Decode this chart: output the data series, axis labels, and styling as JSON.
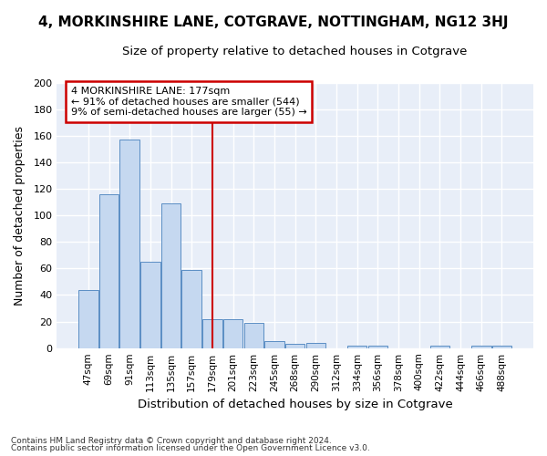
{
  "title": "4, MORKINSHIRE LANE, COTGRAVE, NOTTINGHAM, NG12 3HJ",
  "subtitle": "Size of property relative to detached houses in Cotgrave",
  "xlabel": "Distribution of detached houses by size in Cotgrave",
  "ylabel": "Number of detached properties",
  "categories": [
    "47sqm",
    "69sqm",
    "91sqm",
    "113sqm",
    "135sqm",
    "157sqm",
    "179sqm",
    "201sqm",
    "223sqm",
    "245sqm",
    "268sqm",
    "290sqm",
    "312sqm",
    "334sqm",
    "356sqm",
    "378sqm",
    "400sqm",
    "422sqm",
    "444sqm",
    "466sqm",
    "488sqm"
  ],
  "values": [
    44,
    116,
    157,
    65,
    109,
    59,
    22,
    22,
    19,
    5,
    3,
    4,
    0,
    2,
    2,
    0,
    0,
    2,
    0,
    2,
    2
  ],
  "bar_color": "#c5d8f0",
  "bar_edge_color": "#5b8ec4",
  "bg_color": "#ffffff",
  "plot_bg_color": "#e8eef8",
  "grid_color": "#ffffff",
  "annotation_box_text": [
    "4 MORKINSHIRE LANE: 177sqm",
    "← 91% of detached houses are smaller (544)",
    "9% of semi-detached houses are larger (55) →"
  ],
  "box_color": "white",
  "box_edge_color": "#cc0000",
  "vline_color": "#cc0000",
  "vline_x_idx": 6,
  "ylim": [
    0,
    200
  ],
  "yticks": [
    0,
    20,
    40,
    60,
    80,
    100,
    120,
    140,
    160,
    180,
    200
  ],
  "footer1": "Contains HM Land Registry data © Crown copyright and database right 2024.",
  "footer2": "Contains public sector information licensed under the Open Government Licence v3.0.",
  "title_fontsize": 11,
  "subtitle_fontsize": 9.5,
  "xlabel_fontsize": 9.5,
  "ylabel_fontsize": 9,
  "bar_width": 0.95
}
